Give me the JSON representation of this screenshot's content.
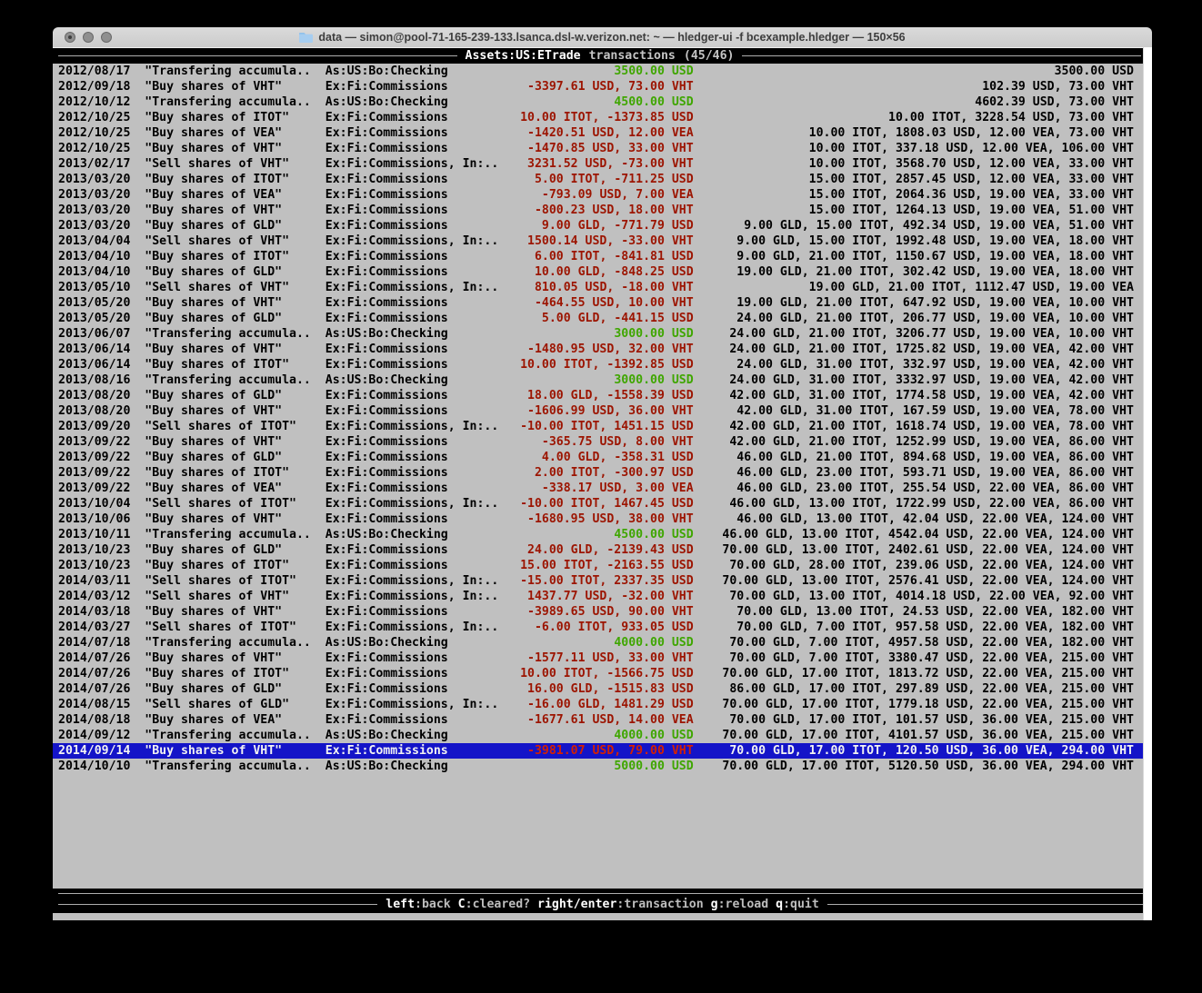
{
  "window": {
    "title": "data — simon@pool-71-165-239-133.lsanca.dsl-w.verizon.net: ~ — hledger-ui -f bcexample.hledger — 150×56"
  },
  "header": {
    "account": "Assets:US:ETrade",
    "label": "transactions",
    "count": "(45/46)"
  },
  "footer": {
    "hints": [
      {
        "key": "left",
        "desc": ":back"
      },
      {
        "key": "C",
        "desc": ":cleared?"
      },
      {
        "key": "right/enter",
        "desc": ":transaction"
      },
      {
        "key": "g",
        "desc": ":reload"
      },
      {
        "key": "q",
        "desc": ":quit"
      }
    ]
  },
  "colors": {
    "terminal_bg": "#c0c0c0",
    "bar_bg": "#000000",
    "positive_amount": "#3fa600",
    "negative_amount": "#9c1400",
    "selected_bg": "#1414c8",
    "selected_fg": "#f2f2f2"
  },
  "transactions": [
    {
      "date": "2012/08/17",
      "description": "\"Transfering accumula..",
      "account": "As:US:Bo:Checking",
      "change": "3500.00 USD",
      "change_type": "pos",
      "balance": "3500.00 USD",
      "selected": false
    },
    {
      "date": "2012/09/18",
      "description": "\"Buy shares of VHT\"",
      "account": "Ex:Fi:Commissions",
      "change": "-3397.61 USD, 73.00 VHT",
      "change_type": "neg",
      "balance": "102.39 USD, 73.00 VHT",
      "selected": false
    },
    {
      "date": "2012/10/12",
      "description": "\"Transfering accumula..",
      "account": "As:US:Bo:Checking",
      "change": "4500.00 USD",
      "change_type": "pos",
      "balance": "4602.39 USD, 73.00 VHT",
      "selected": false
    },
    {
      "date": "2012/10/25",
      "description": "\"Buy shares of ITOT\"",
      "account": "Ex:Fi:Commissions",
      "change": "10.00 ITOT, -1373.85 USD",
      "change_type": "neg",
      "balance": "10.00 ITOT, 3228.54 USD, 73.00 VHT",
      "selected": false
    },
    {
      "date": "2012/10/25",
      "description": "\"Buy shares of VEA\"",
      "account": "Ex:Fi:Commissions",
      "change": "-1420.51 USD, 12.00 VEA",
      "change_type": "neg",
      "balance": "10.00 ITOT, 1808.03 USD, 12.00 VEA, 73.00 VHT",
      "selected": false
    },
    {
      "date": "2012/10/25",
      "description": "\"Buy shares of VHT\"",
      "account": "Ex:Fi:Commissions",
      "change": "-1470.85 USD, 33.00 VHT",
      "change_type": "neg",
      "balance": "10.00 ITOT, 337.18 USD, 12.00 VEA, 106.00 VHT",
      "selected": false
    },
    {
      "date": "2013/02/17",
      "description": "\"Sell shares of VHT\"",
      "account": "Ex:Fi:Commissions, In:..",
      "change": "3231.52 USD, -73.00 VHT",
      "change_type": "neg",
      "balance": "10.00 ITOT, 3568.70 USD, 12.00 VEA, 33.00 VHT",
      "selected": false
    },
    {
      "date": "2013/03/20",
      "description": "\"Buy shares of ITOT\"",
      "account": "Ex:Fi:Commissions",
      "change": "5.00 ITOT, -711.25 USD",
      "change_type": "neg",
      "balance": "15.00 ITOT, 2857.45 USD, 12.00 VEA, 33.00 VHT",
      "selected": false
    },
    {
      "date": "2013/03/20",
      "description": "\"Buy shares of VEA\"",
      "account": "Ex:Fi:Commissions",
      "change": "-793.09 USD, 7.00 VEA",
      "change_type": "neg",
      "balance": "15.00 ITOT, 2064.36 USD, 19.00 VEA, 33.00 VHT",
      "selected": false
    },
    {
      "date": "2013/03/20",
      "description": "\"Buy shares of VHT\"",
      "account": "Ex:Fi:Commissions",
      "change": "-800.23 USD, 18.00 VHT",
      "change_type": "neg",
      "balance": "15.00 ITOT, 1264.13 USD, 19.00 VEA, 51.00 VHT",
      "selected": false
    },
    {
      "date": "2013/03/20",
      "description": "\"Buy shares of GLD\"",
      "account": "Ex:Fi:Commissions",
      "change": "9.00 GLD, -771.79 USD",
      "change_type": "neg",
      "balance": "9.00 GLD, 15.00 ITOT, 492.34 USD, 19.00 VEA, 51.00 VHT",
      "selected": false
    },
    {
      "date": "2013/04/04",
      "description": "\"Sell shares of VHT\"",
      "account": "Ex:Fi:Commissions, In:..",
      "change": "1500.14 USD, -33.00 VHT",
      "change_type": "neg",
      "balance": "9.00 GLD, 15.00 ITOT, 1992.48 USD, 19.00 VEA, 18.00 VHT",
      "selected": false
    },
    {
      "date": "2013/04/10",
      "description": "\"Buy shares of ITOT\"",
      "account": "Ex:Fi:Commissions",
      "change": "6.00 ITOT, -841.81 USD",
      "change_type": "neg",
      "balance": "9.00 GLD, 21.00 ITOT, 1150.67 USD, 19.00 VEA, 18.00 VHT",
      "selected": false
    },
    {
      "date": "2013/04/10",
      "description": "\"Buy shares of GLD\"",
      "account": "Ex:Fi:Commissions",
      "change": "10.00 GLD, -848.25 USD",
      "change_type": "neg",
      "balance": "19.00 GLD, 21.00 ITOT, 302.42 USD, 19.00 VEA, 18.00 VHT",
      "selected": false
    },
    {
      "date": "2013/05/10",
      "description": "\"Sell shares of VHT\"",
      "account": "Ex:Fi:Commissions, In:..",
      "change": "810.05 USD, -18.00 VHT",
      "change_type": "neg",
      "balance": "19.00 GLD, 21.00 ITOT, 1112.47 USD, 19.00 VEA",
      "selected": false
    },
    {
      "date": "2013/05/20",
      "description": "\"Buy shares of VHT\"",
      "account": "Ex:Fi:Commissions",
      "change": "-464.55 USD, 10.00 VHT",
      "change_type": "neg",
      "balance": "19.00 GLD, 21.00 ITOT, 647.92 USD, 19.00 VEA, 10.00 VHT",
      "selected": false
    },
    {
      "date": "2013/05/20",
      "description": "\"Buy shares of GLD\"",
      "account": "Ex:Fi:Commissions",
      "change": "5.00 GLD, -441.15 USD",
      "change_type": "neg",
      "balance": "24.00 GLD, 21.00 ITOT, 206.77 USD, 19.00 VEA, 10.00 VHT",
      "selected": false
    },
    {
      "date": "2013/06/07",
      "description": "\"Transfering accumula..",
      "account": "As:US:Bo:Checking",
      "change": "3000.00 USD",
      "change_type": "pos",
      "balance": "24.00 GLD, 21.00 ITOT, 3206.77 USD, 19.00 VEA, 10.00 VHT",
      "selected": false
    },
    {
      "date": "2013/06/14",
      "description": "\"Buy shares of VHT\"",
      "account": "Ex:Fi:Commissions",
      "change": "-1480.95 USD, 32.00 VHT",
      "change_type": "neg",
      "balance": "24.00 GLD, 21.00 ITOT, 1725.82 USD, 19.00 VEA, 42.00 VHT",
      "selected": false
    },
    {
      "date": "2013/06/14",
      "description": "\"Buy shares of ITOT\"",
      "account": "Ex:Fi:Commissions",
      "change": "10.00 ITOT, -1392.85 USD",
      "change_type": "neg",
      "balance": "24.00 GLD, 31.00 ITOT, 332.97 USD, 19.00 VEA, 42.00 VHT",
      "selected": false
    },
    {
      "date": "2013/08/16",
      "description": "\"Transfering accumula..",
      "account": "As:US:Bo:Checking",
      "change": "3000.00 USD",
      "change_type": "pos",
      "balance": "24.00 GLD, 31.00 ITOT, 3332.97 USD, 19.00 VEA, 42.00 VHT",
      "selected": false
    },
    {
      "date": "2013/08/20",
      "description": "\"Buy shares of GLD\"",
      "account": "Ex:Fi:Commissions",
      "change": "18.00 GLD, -1558.39 USD",
      "change_type": "neg",
      "balance": "42.00 GLD, 31.00 ITOT, 1774.58 USD, 19.00 VEA, 42.00 VHT",
      "selected": false
    },
    {
      "date": "2013/08/20",
      "description": "\"Buy shares of VHT\"",
      "account": "Ex:Fi:Commissions",
      "change": "-1606.99 USD, 36.00 VHT",
      "change_type": "neg",
      "balance": "42.00 GLD, 31.00 ITOT, 167.59 USD, 19.00 VEA, 78.00 VHT",
      "selected": false
    },
    {
      "date": "2013/09/20",
      "description": "\"Sell shares of ITOT\"",
      "account": "Ex:Fi:Commissions, In:..",
      "change": "-10.00 ITOT, 1451.15 USD",
      "change_type": "neg",
      "balance": "42.00 GLD, 21.00 ITOT, 1618.74 USD, 19.00 VEA, 78.00 VHT",
      "selected": false
    },
    {
      "date": "2013/09/22",
      "description": "\"Buy shares of VHT\"",
      "account": "Ex:Fi:Commissions",
      "change": "-365.75 USD, 8.00 VHT",
      "change_type": "neg",
      "balance": "42.00 GLD, 21.00 ITOT, 1252.99 USD, 19.00 VEA, 86.00 VHT",
      "selected": false
    },
    {
      "date": "2013/09/22",
      "description": "\"Buy shares of GLD\"",
      "account": "Ex:Fi:Commissions",
      "change": "4.00 GLD, -358.31 USD",
      "change_type": "neg",
      "balance": "46.00 GLD, 21.00 ITOT, 894.68 USD, 19.00 VEA, 86.00 VHT",
      "selected": false
    },
    {
      "date": "2013/09/22",
      "description": "\"Buy shares of ITOT\"",
      "account": "Ex:Fi:Commissions",
      "change": "2.00 ITOT, -300.97 USD",
      "change_type": "neg",
      "balance": "46.00 GLD, 23.00 ITOT, 593.71 USD, 19.00 VEA, 86.00 VHT",
      "selected": false
    },
    {
      "date": "2013/09/22",
      "description": "\"Buy shares of VEA\"",
      "account": "Ex:Fi:Commissions",
      "change": "-338.17 USD, 3.00 VEA",
      "change_type": "neg",
      "balance": "46.00 GLD, 23.00 ITOT, 255.54 USD, 22.00 VEA, 86.00 VHT",
      "selected": false
    },
    {
      "date": "2013/10/04",
      "description": "\"Sell shares of ITOT\"",
      "account": "Ex:Fi:Commissions, In:..",
      "change": "-10.00 ITOT, 1467.45 USD",
      "change_type": "neg",
      "balance": "46.00 GLD, 13.00 ITOT, 1722.99 USD, 22.00 VEA, 86.00 VHT",
      "selected": false
    },
    {
      "date": "2013/10/06",
      "description": "\"Buy shares of VHT\"",
      "account": "Ex:Fi:Commissions",
      "change": "-1680.95 USD, 38.00 VHT",
      "change_type": "neg",
      "balance": "46.00 GLD, 13.00 ITOT, 42.04 USD, 22.00 VEA, 124.00 VHT",
      "selected": false
    },
    {
      "date": "2013/10/11",
      "description": "\"Transfering accumula..",
      "account": "As:US:Bo:Checking",
      "change": "4500.00 USD",
      "change_type": "pos",
      "balance": "46.00 GLD, 13.00 ITOT, 4542.04 USD, 22.00 VEA, 124.00 VHT",
      "selected": false
    },
    {
      "date": "2013/10/23",
      "description": "\"Buy shares of GLD\"",
      "account": "Ex:Fi:Commissions",
      "change": "24.00 GLD, -2139.43 USD",
      "change_type": "neg",
      "balance": "70.00 GLD, 13.00 ITOT, 2402.61 USD, 22.00 VEA, 124.00 VHT",
      "selected": false
    },
    {
      "date": "2013/10/23",
      "description": "\"Buy shares of ITOT\"",
      "account": "Ex:Fi:Commissions",
      "change": "15.00 ITOT, -2163.55 USD",
      "change_type": "neg",
      "balance": "70.00 GLD, 28.00 ITOT, 239.06 USD, 22.00 VEA, 124.00 VHT",
      "selected": false
    },
    {
      "date": "2014/03/11",
      "description": "\"Sell shares of ITOT\"",
      "account": "Ex:Fi:Commissions, In:..",
      "change": "-15.00 ITOT, 2337.35 USD",
      "change_type": "neg",
      "balance": "70.00 GLD, 13.00 ITOT, 2576.41 USD, 22.00 VEA, 124.00 VHT",
      "selected": false
    },
    {
      "date": "2014/03/12",
      "description": "\"Sell shares of VHT\"",
      "account": "Ex:Fi:Commissions, In:..",
      "change": "1437.77 USD, -32.00 VHT",
      "change_type": "neg",
      "balance": "70.00 GLD, 13.00 ITOT, 4014.18 USD, 22.00 VEA, 92.00 VHT",
      "selected": false
    },
    {
      "date": "2014/03/18",
      "description": "\"Buy shares of VHT\"",
      "account": "Ex:Fi:Commissions",
      "change": "-3989.65 USD, 90.00 VHT",
      "change_type": "neg",
      "balance": "70.00 GLD, 13.00 ITOT, 24.53 USD, 22.00 VEA, 182.00 VHT",
      "selected": false
    },
    {
      "date": "2014/03/27",
      "description": "\"Sell shares of ITOT\"",
      "account": "Ex:Fi:Commissions, In:..",
      "change": "-6.00 ITOT, 933.05 USD",
      "change_type": "neg",
      "balance": "70.00 GLD, 7.00 ITOT, 957.58 USD, 22.00 VEA, 182.00 VHT",
      "selected": false
    },
    {
      "date": "2014/07/18",
      "description": "\"Transfering accumula..",
      "account": "As:US:Bo:Checking",
      "change": "4000.00 USD",
      "change_type": "pos",
      "balance": "70.00 GLD, 7.00 ITOT, 4957.58 USD, 22.00 VEA, 182.00 VHT",
      "selected": false
    },
    {
      "date": "2014/07/26",
      "description": "\"Buy shares of VHT\"",
      "account": "Ex:Fi:Commissions",
      "change": "-1577.11 USD, 33.00 VHT",
      "change_type": "neg",
      "balance": "70.00 GLD, 7.00 ITOT, 3380.47 USD, 22.00 VEA, 215.00 VHT",
      "selected": false
    },
    {
      "date": "2014/07/26",
      "description": "\"Buy shares of ITOT\"",
      "account": "Ex:Fi:Commissions",
      "change": "10.00 ITOT, -1566.75 USD",
      "change_type": "neg",
      "balance": "70.00 GLD, 17.00 ITOT, 1813.72 USD, 22.00 VEA, 215.00 VHT",
      "selected": false
    },
    {
      "date": "2014/07/26",
      "description": "\"Buy shares of GLD\"",
      "account": "Ex:Fi:Commissions",
      "change": "16.00 GLD, -1515.83 USD",
      "change_type": "neg",
      "balance": "86.00 GLD, 17.00 ITOT, 297.89 USD, 22.00 VEA, 215.00 VHT",
      "selected": false
    },
    {
      "date": "2014/08/15",
      "description": "\"Sell shares of GLD\"",
      "account": "Ex:Fi:Commissions, In:..",
      "change": "-16.00 GLD, 1481.29 USD",
      "change_type": "neg",
      "balance": "70.00 GLD, 17.00 ITOT, 1779.18 USD, 22.00 VEA, 215.00 VHT",
      "selected": false
    },
    {
      "date": "2014/08/18",
      "description": "\"Buy shares of VEA\"",
      "account": "Ex:Fi:Commissions",
      "change": "-1677.61 USD, 14.00 VEA",
      "change_type": "neg",
      "balance": "70.00 GLD, 17.00 ITOT, 101.57 USD, 36.00 VEA, 215.00 VHT",
      "selected": false
    },
    {
      "date": "2014/09/12",
      "description": "\"Transfering accumula..",
      "account": "As:US:Bo:Checking",
      "change": "4000.00 USD",
      "change_type": "pos",
      "balance": "70.00 GLD, 17.00 ITOT, 4101.57 USD, 36.00 VEA, 215.00 VHT",
      "selected": false
    },
    {
      "date": "2014/09/14",
      "description": "\"Buy shares of VHT\"",
      "account": "Ex:Fi:Commissions",
      "change": "-3981.07 USD, 79.00 VHT",
      "change_type": "neg",
      "balance": "70.00 GLD, 17.00 ITOT, 120.50 USD, 36.00 VEA, 294.00 VHT",
      "selected": true
    },
    {
      "date": "2014/10/10",
      "description": "\"Transfering accumula..",
      "account": "As:US:Bo:Checking",
      "change": "5000.00 USD",
      "change_type": "pos",
      "balance": "70.00 GLD, 17.00 ITOT, 5120.50 USD, 36.00 VEA, 294.00 VHT",
      "selected": false
    }
  ]
}
